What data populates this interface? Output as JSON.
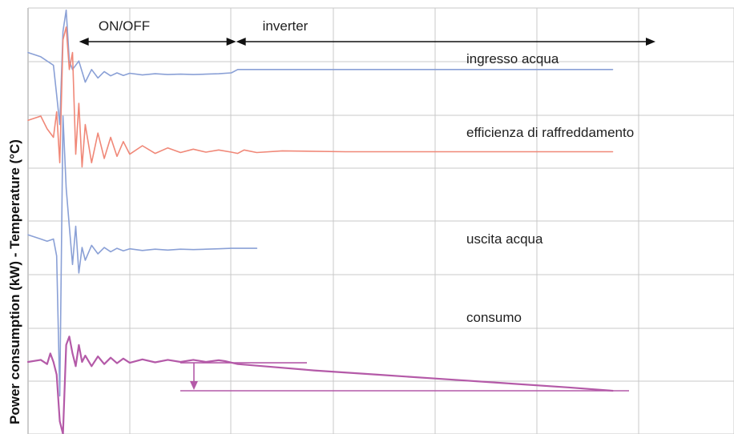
{
  "chart_data": {
    "type": "line",
    "title": "",
    "ylabel": "Power consumption (kW)   -   Temperature (°C)",
    "xlabel": "",
    "grid": true,
    "legend": "none",
    "regions": [
      {
        "label": "ON/OFF",
        "start": 0.05,
        "end": 0.33
      },
      {
        "label": "inverter",
        "start": 0.33,
        "end": 1.0
      }
    ],
    "series": [
      {
        "name": "ingresso acqua",
        "color": "#8aa0d6",
        "points": [
          [
            0.0,
            0.9
          ],
          [
            0.02,
            0.89
          ],
          [
            0.04,
            0.87
          ],
          [
            0.045,
            0.8
          ],
          [
            0.05,
            0.73
          ],
          [
            0.055,
            0.95
          ],
          [
            0.06,
            1.0
          ],
          [
            0.065,
            0.88
          ],
          [
            0.07,
            0.86
          ],
          [
            0.08,
            0.88
          ],
          [
            0.09,
            0.83
          ],
          [
            0.1,
            0.86
          ],
          [
            0.11,
            0.84
          ],
          [
            0.12,
            0.855
          ],
          [
            0.13,
            0.845
          ],
          [
            0.14,
            0.852
          ],
          [
            0.15,
            0.846
          ],
          [
            0.16,
            0.851
          ],
          [
            0.18,
            0.847
          ],
          [
            0.2,
            0.85
          ],
          [
            0.22,
            0.848
          ],
          [
            0.24,
            0.849
          ],
          [
            0.26,
            0.848
          ],
          [
            0.28,
            0.849
          ],
          [
            0.3,
            0.85
          ],
          [
            0.32,
            0.852
          ],
          [
            0.33,
            0.86
          ],
          [
            0.36,
            0.86
          ],
          [
            0.5,
            0.86
          ],
          [
            0.7,
            0.86
          ],
          [
            0.92,
            0.86
          ]
        ]
      },
      {
        "name": "efficienza di raffreddamento",
        "color": "#f08878",
        "points": [
          [
            0.0,
            0.74
          ],
          [
            0.02,
            0.75
          ],
          [
            0.03,
            0.72
          ],
          [
            0.04,
            0.7
          ],
          [
            0.045,
            0.76
          ],
          [
            0.05,
            0.64
          ],
          [
            0.055,
            0.93
          ],
          [
            0.06,
            0.96
          ],
          [
            0.065,
            0.86
          ],
          [
            0.07,
            0.9
          ],
          [
            0.075,
            0.66
          ],
          [
            0.08,
            0.78
          ],
          [
            0.085,
            0.63
          ],
          [
            0.09,
            0.73
          ],
          [
            0.1,
            0.64
          ],
          [
            0.11,
            0.71
          ],
          [
            0.12,
            0.65
          ],
          [
            0.13,
            0.7
          ],
          [
            0.14,
            0.655
          ],
          [
            0.15,
            0.69
          ],
          [
            0.16,
            0.66
          ],
          [
            0.18,
            0.68
          ],
          [
            0.2,
            0.662
          ],
          [
            0.22,
            0.675
          ],
          [
            0.24,
            0.664
          ],
          [
            0.26,
            0.672
          ],
          [
            0.28,
            0.665
          ],
          [
            0.3,
            0.67
          ],
          [
            0.32,
            0.665
          ],
          [
            0.33,
            0.662
          ],
          [
            0.34,
            0.67
          ],
          [
            0.36,
            0.664
          ],
          [
            0.4,
            0.668
          ],
          [
            0.5,
            0.666
          ],
          [
            0.7,
            0.666
          ],
          [
            0.92,
            0.666
          ]
        ]
      },
      {
        "name": "uscita acqua",
        "color": "#8aa0d6",
        "points": [
          [
            0.0,
            0.47
          ],
          [
            0.02,
            0.46
          ],
          [
            0.03,
            0.455
          ],
          [
            0.04,
            0.46
          ],
          [
            0.045,
            0.42
          ],
          [
            0.05,
            0.09
          ],
          [
            0.055,
            0.75
          ],
          [
            0.06,
            0.58
          ],
          [
            0.065,
            0.49
          ],
          [
            0.07,
            0.4
          ],
          [
            0.075,
            0.49
          ],
          [
            0.08,
            0.38
          ],
          [
            0.085,
            0.44
          ],
          [
            0.09,
            0.41
          ],
          [
            0.1,
            0.445
          ],
          [
            0.11,
            0.425
          ],
          [
            0.12,
            0.44
          ],
          [
            0.13,
            0.43
          ],
          [
            0.14,
            0.438
          ],
          [
            0.15,
            0.432
          ],
          [
            0.16,
            0.437
          ],
          [
            0.18,
            0.433
          ],
          [
            0.2,
            0.436
          ],
          [
            0.22,
            0.434
          ],
          [
            0.24,
            0.436
          ],
          [
            0.26,
            0.435
          ],
          [
            0.28,
            0.436
          ],
          [
            0.3,
            0.437
          ],
          [
            0.32,
            0.438
          ],
          [
            0.36,
            0.438
          ]
        ]
      },
      {
        "name": "consumo",
        "color": "#b45aa8",
        "points": [
          [
            0.0,
            0.17
          ],
          [
            0.02,
            0.175
          ],
          [
            0.03,
            0.165
          ],
          [
            0.035,
            0.19
          ],
          [
            0.04,
            0.17
          ],
          [
            0.045,
            0.14
          ],
          [
            0.05,
            0.03
          ],
          [
            0.055,
            0.0
          ],
          [
            0.06,
            0.21
          ],
          [
            0.065,
            0.23
          ],
          [
            0.07,
            0.19
          ],
          [
            0.075,
            0.16
          ],
          [
            0.08,
            0.21
          ],
          [
            0.085,
            0.17
          ],
          [
            0.09,
            0.185
          ],
          [
            0.1,
            0.16
          ],
          [
            0.11,
            0.183
          ],
          [
            0.12,
            0.165
          ],
          [
            0.13,
            0.18
          ],
          [
            0.14,
            0.167
          ],
          [
            0.15,
            0.178
          ],
          [
            0.16,
            0.168
          ],
          [
            0.18,
            0.176
          ],
          [
            0.2,
            0.169
          ],
          [
            0.22,
            0.175
          ],
          [
            0.24,
            0.17
          ],
          [
            0.26,
            0.175
          ],
          [
            0.28,
            0.17
          ],
          [
            0.3,
            0.174
          ],
          [
            0.31,
            0.172
          ],
          [
            0.33,
            0.165
          ],
          [
            0.37,
            0.16
          ],
          [
            0.45,
            0.15
          ],
          [
            0.55,
            0.14
          ],
          [
            0.65,
            0.13
          ],
          [
            0.75,
            0.12
          ],
          [
            0.85,
            0.11
          ],
          [
            0.92,
            0.102
          ]
        ]
      }
    ],
    "annotations": {
      "series_labels": [
        {
          "text": "ingresso acqua",
          "series": "ingresso acqua"
        },
        {
          "text": "efficienza di raffreddamento",
          "series": "efficienza di raffreddamento"
        },
        {
          "text": "uscita acqua",
          "series": "uscita acqua"
        },
        {
          "text": "consumo",
          "series": "consumo"
        }
      ],
      "power_reduction": {
        "before_level": 0.168,
        "after_level": 0.102
      }
    }
  }
}
